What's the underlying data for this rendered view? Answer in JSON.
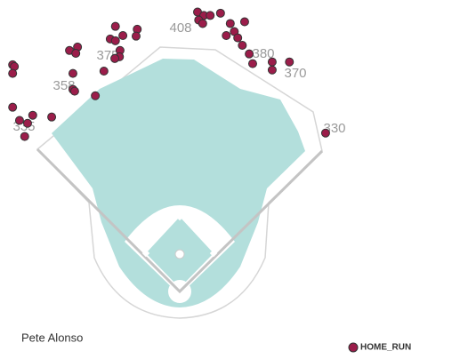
{
  "chart_data": {
    "type": "scatter",
    "title": "Pete Alonso",
    "xlim": [
      -313,
      502
    ],
    "ylim": [
      -118,
      508
    ],
    "annotations": [
      "408",
      "380",
      "370",
      "330",
      "375",
      "358",
      "335"
    ],
    "series": [
      {
        "name": "HOME_RUN",
        "color": "#9b1d4a",
        "x": [
          -291,
          -288,
          -291,
          -192,
          -178,
          -181,
          -186,
          -186,
          -183,
          -223,
          -256,
          -279,
          -265,
          -270,
          -291,
          -147,
          -132,
          -112,
          -121,
          -112,
          -99,
          -74,
          -76,
          -104,
          -105,
          -113,
          31,
          42,
          33,
          40,
          53,
          71,
          88,
          113,
          95,
          81,
          101,
          109,
          121,
          127,
          161,
          191,
          161,
          254
        ],
        "y": [
          395,
          392,
          380,
          420,
          426,
          415,
          380,
          352,
          349,
          304,
          307,
          298,
          293,
          270,
          321,
          341,
          384,
          462,
          440,
          437,
          446,
          457,
          445,
          420,
          409,
          406,
          487,
          481,
          473,
          467,
          481,
          485,
          467,
          470,
          453,
          446,
          442,
          429,
          414,
          397,
          400,
          400,
          386,
          276
        ]
      }
    ]
  }
}
